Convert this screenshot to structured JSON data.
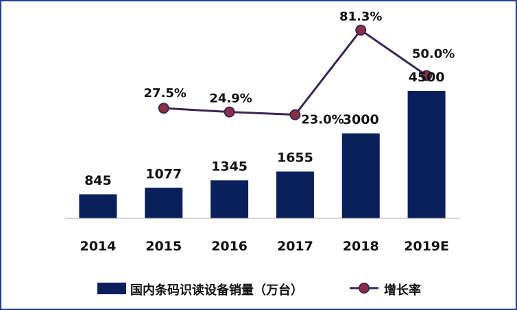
{
  "chart_data": {
    "type": "bar",
    "categories": [
      "2014",
      "2015",
      "2016",
      "2017",
      "2018",
      "2019E"
    ],
    "series": [
      {
        "name": "国内条码识读设备销量（万台）",
        "type": "bar",
        "values": [
          845,
          1077,
          1345,
          1655,
          3000,
          4500
        ],
        "labels": [
          "845",
          "1077",
          "1345",
          "1655",
          "3000",
          "4500"
        ],
        "color": "#0a1f5c"
      },
      {
        "name": "增长率",
        "type": "line",
        "values": [
          null,
          27.5,
          24.9,
          23.0,
          81.3,
          50.0
        ],
        "labels": [
          "",
          "27.5%",
          "24.9%",
          "23.0%",
          "81.3%",
          "50.0%"
        ],
        "color": "#3b2452",
        "marker_color": "#8b2f47"
      }
    ],
    "ylim": [
      0,
      4500
    ],
    "secondary_ylim": [
      0,
      90
    ],
    "grid": false,
    "legend_position": "bottom"
  },
  "legend": {
    "bar_label": "国内条码识读设备销量（万台）",
    "line_label": "增长率"
  }
}
